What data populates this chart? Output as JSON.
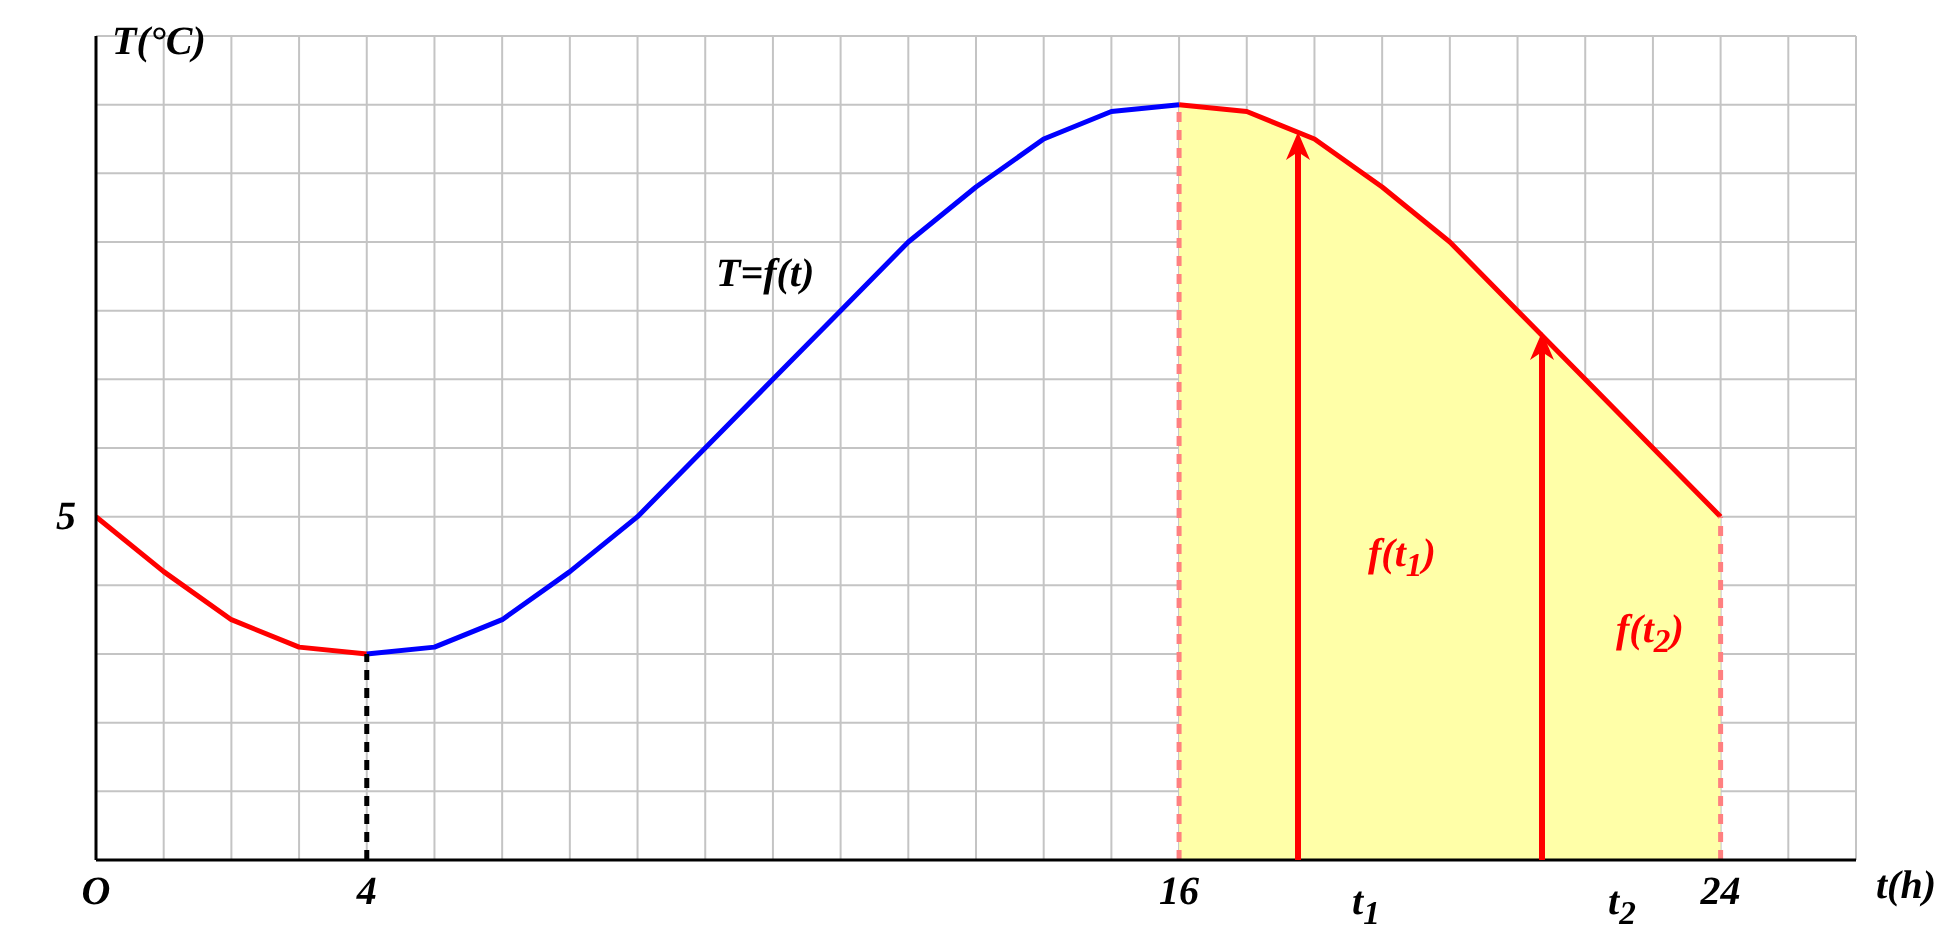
{
  "chart_data": {
    "type": "line",
    "xlabel": "t(h)",
    "ylabel": "T(°C)",
    "xlim": [
      0,
      26
    ],
    "ylim": [
      0,
      12
    ],
    "xticks": [
      {
        "value": 0,
        "label": "O"
      },
      {
        "value": 1,
        "label": null
      },
      {
        "value": 2,
        "label": null
      },
      {
        "value": 3,
        "label": null
      },
      4,
      {
        "value": 5,
        "label": null
      },
      {
        "value": 6,
        "label": null
      },
      {
        "value": 7,
        "label": null
      },
      {
        "value": 8,
        "label": null
      },
      {
        "value": 9,
        "label": null
      },
      {
        "value": 10,
        "label": null
      },
      {
        "value": 11,
        "label": null
      },
      {
        "value": 12,
        "label": null
      },
      {
        "value": 13,
        "label": null
      },
      {
        "value": 14,
        "label": null
      },
      {
        "value": 15,
        "label": null
      },
      16,
      {
        "value": 17,
        "label": null
      },
      {
        "value": 18,
        "label": null
      },
      {
        "value": 19,
        "label": null
      },
      {
        "value": 20,
        "label": null
      },
      {
        "value": 21,
        "label": null
      },
      {
        "value": 22,
        "label": null
      },
      {
        "value": 23,
        "label": null
      },
      24,
      {
        "value": 25,
        "label": null
      },
      {
        "value": 26,
        "label": null
      }
    ],
    "yticks": [
      {
        "value": 0,
        "label": null
      },
      {
        "value": 1,
        "label": null
      },
      {
        "value": 2,
        "label": null
      },
      {
        "value": 3,
        "label": null
      },
      {
        "value": 4,
        "label": null
      },
      5,
      {
        "value": 6,
        "label": null
      },
      {
        "value": 7,
        "label": null
      },
      {
        "value": 8,
        "label": null
      },
      {
        "value": 9,
        "label": null
      },
      {
        "value": 10,
        "label": null
      },
      {
        "value": 11,
        "label": null
      },
      {
        "value": 12,
        "label": null
      }
    ],
    "grid": true,
    "marker": "none",
    "series": [
      {
        "type": "line",
        "color": "#ff0000",
        "x": [
          0,
          1,
          2,
          3,
          4
        ],
        "values": [
          5,
          4.2,
          3.5,
          3.1,
          3
        ]
      },
      {
        "type": "line",
        "color": "#0000ff",
        "x": [
          4,
          5,
          6,
          7,
          8,
          9,
          10,
          11,
          12,
          13,
          14,
          15,
          16
        ],
        "values": [
          3,
          3.1,
          3.5,
          4.2,
          5,
          6,
          7,
          8,
          9,
          9.8,
          10.5,
          10.9,
          11
        ]
      },
      {
        "type": "area",
        "color": "#ff0000",
        "x": [
          16,
          17,
          18,
          19,
          20,
          21,
          22,
          23,
          24
        ],
        "values": [
          11,
          10.9,
          10.5,
          9.8,
          9,
          8,
          7,
          6,
          5
        ]
      },
      {
        "type": "line",
        "color": "#000000",
        "line_style": "dashed",
        "x": [
          4,
          4
        ],
        "values": [
          0,
          3
        ]
      },
      {
        "type": "line",
        "color": "#ff8080",
        "line_style": "dashed",
        "x": [
          16,
          16
        ],
        "values": [
          0,
          11
        ]
      },
      {
        "type": "line",
        "color": "#ff8080",
        "line_style": "dashed",
        "x": [
          24,
          24
        ],
        "values": [
          0,
          5
        ]
      }
    ],
    "annotations": [
      "T=f(t)",
      "f(t$_{1}$)",
      "f(t$_{2}$)",
      "t$_{1}$",
      "t$_{2}$"
    ]
  }
}
